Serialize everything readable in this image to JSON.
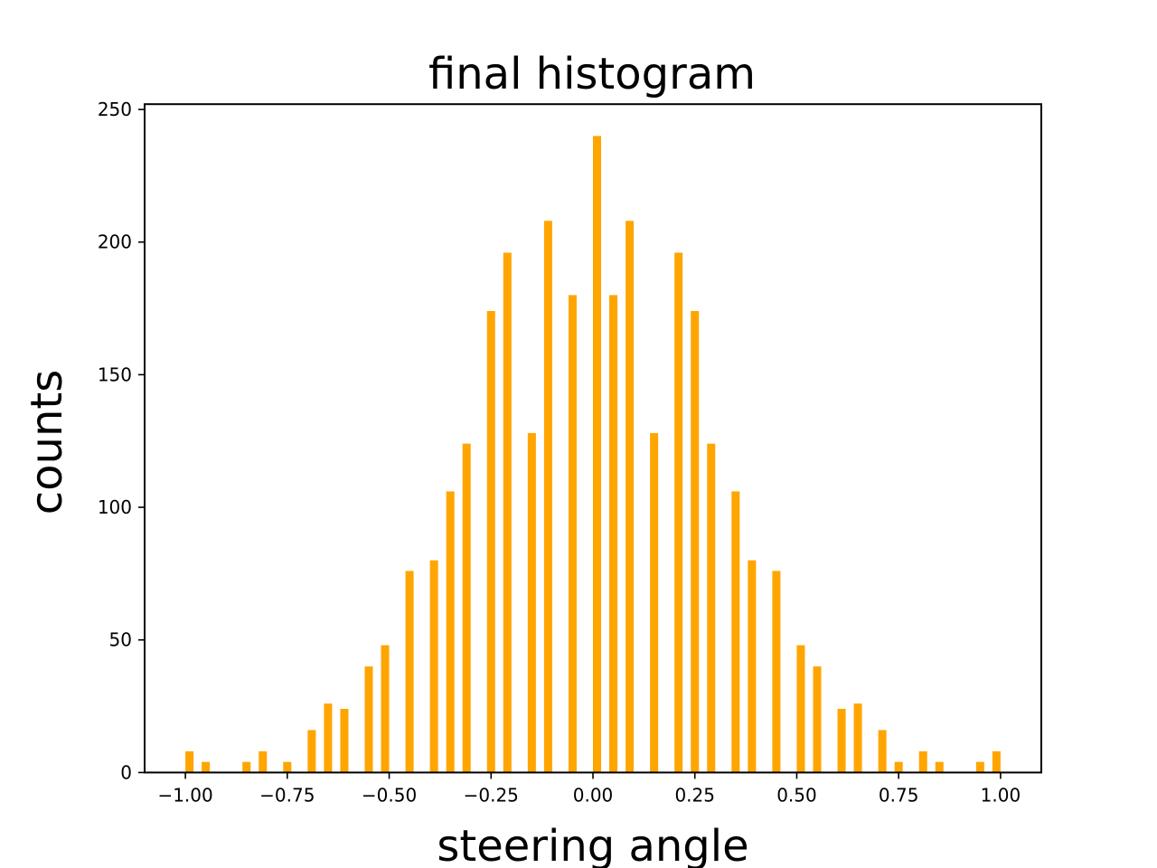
{
  "chart_data": {
    "type": "bar",
    "title": "final histogram",
    "xlabel": "steering angle",
    "ylabel": "counts",
    "xlim": [
      -1.1,
      1.1
    ],
    "ylim": [
      0,
      252
    ],
    "xticks": [
      -1.0,
      -0.75,
      -0.5,
      -0.25,
      0.0,
      0.25,
      0.5,
      0.75,
      1.0
    ],
    "xtick_labels": [
      "−1.00",
      "−0.75",
      "−0.50",
      "−0.25",
      "0.00",
      "0.25",
      "0.50",
      "0.75",
      "1.00"
    ],
    "yticks": [
      0,
      50,
      100,
      150,
      200,
      250
    ],
    "ytick_labels": [
      "0",
      "50",
      "100",
      "150",
      "200",
      "250"
    ],
    "bar_width": 0.02,
    "bar_color": "#ffa500",
    "grid": false,
    "x": [
      -0.99,
      -0.95,
      -0.85,
      -0.81,
      -0.75,
      -0.69,
      -0.65,
      -0.61,
      -0.55,
      -0.51,
      -0.45,
      -0.39,
      -0.35,
      -0.31,
      -0.25,
      -0.21,
      -0.15,
      -0.11,
      -0.05,
      0.01,
      0.05,
      0.09,
      0.15,
      0.21,
      0.25,
      0.29,
      0.35,
      0.39,
      0.45,
      0.51,
      0.55,
      0.61,
      0.65,
      0.71,
      0.75,
      0.81,
      0.85,
      0.95,
      0.99
    ],
    "values": [
      8,
      4,
      4,
      8,
      4,
      16,
      26,
      24,
      40,
      48,
      76,
      80,
      106,
      124,
      174,
      196,
      128,
      208,
      180,
      240,
      180,
      208,
      128,
      196,
      174,
      124,
      106,
      80,
      76,
      48,
      40,
      24,
      26,
      16,
      4,
      8,
      4,
      4,
      8
    ]
  }
}
